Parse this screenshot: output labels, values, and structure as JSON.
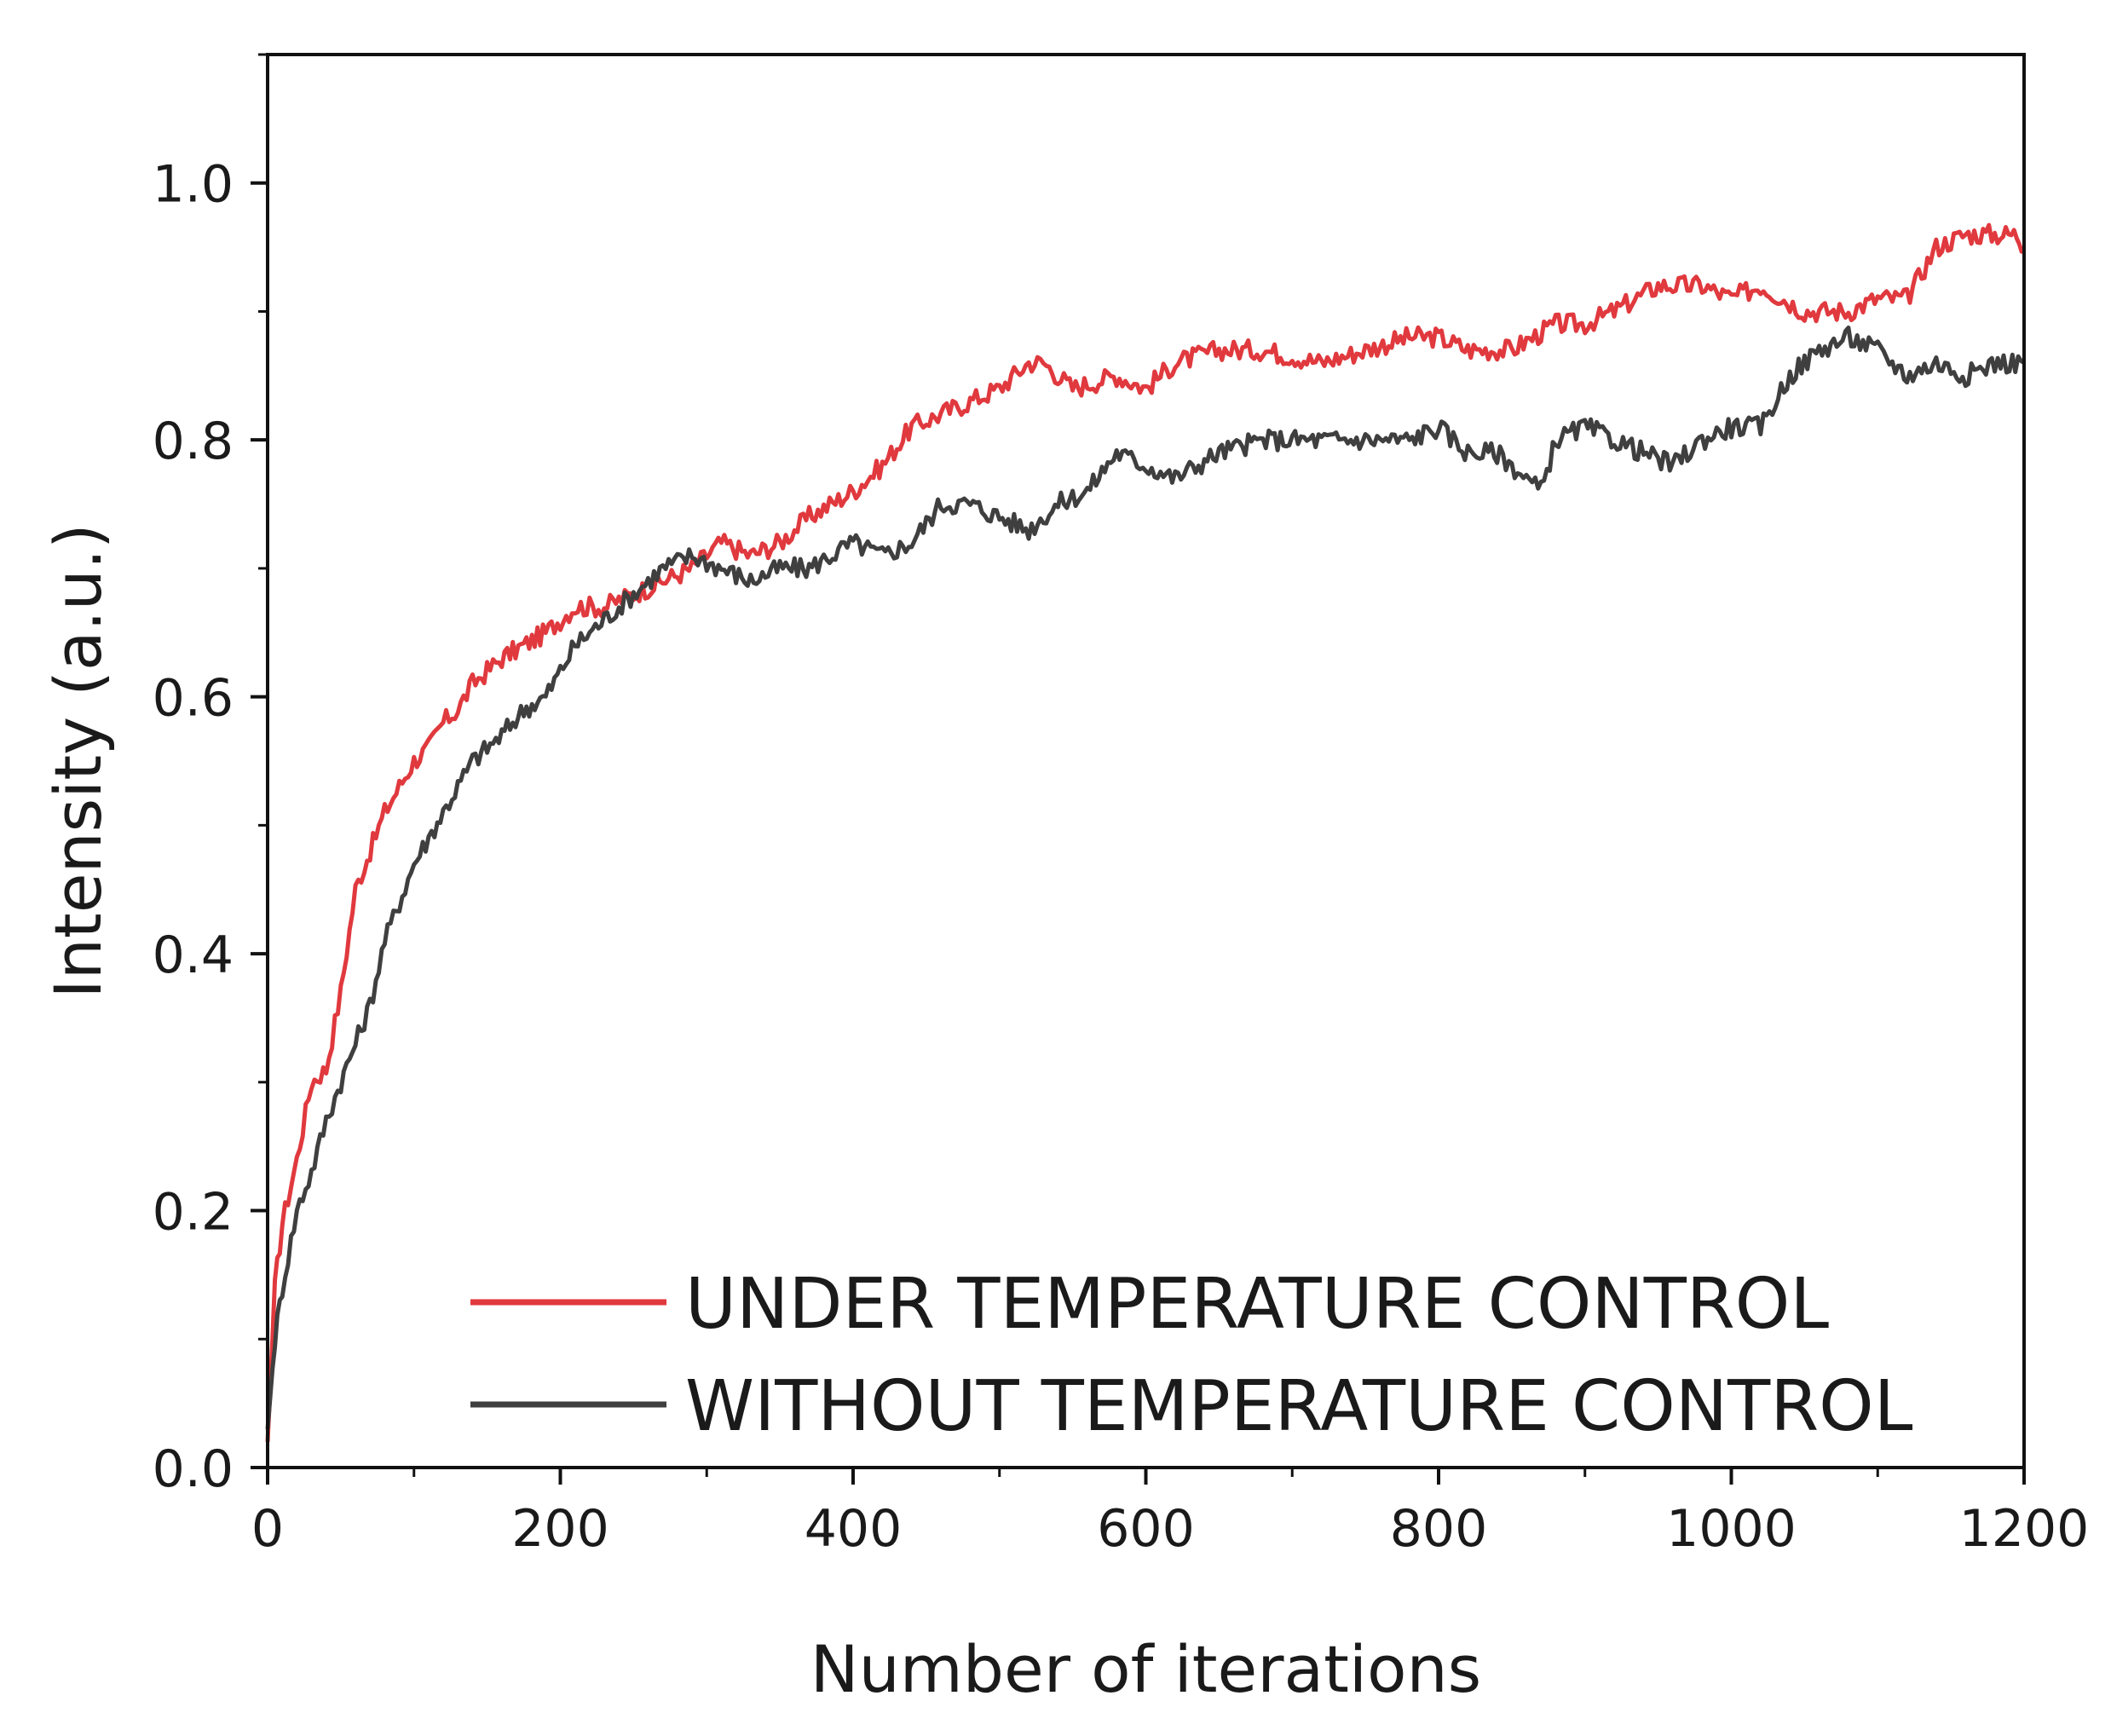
{
  "chart_data": {
    "type": "line",
    "title": "",
    "xlabel": "Number of iterations",
    "ylabel": "Intensity (a.u.)",
    "xlim": [
      0,
      1200
    ],
    "ylim": [
      0,
      1.1
    ],
    "x_ticks": [
      0,
      200,
      400,
      600,
      800,
      1000,
      1200
    ],
    "x_tick_labels": [
      "0",
      "200",
      "400",
      "600",
      "800",
      "1000",
      "1200"
    ],
    "y_ticks": [
      0.0,
      0.2,
      0.4,
      0.6,
      0.8,
      1.0
    ],
    "y_tick_labels": [
      "0.0",
      "0.2",
      "0.4",
      "0.6",
      "0.8",
      "1.0"
    ],
    "grid": false,
    "legend_position": "bottom-right",
    "series": [
      {
        "name": "UNDER TEMPERATURE CONTROL",
        "color": "#e0393e",
        "x": [
          0,
          5,
          10,
          20,
          30,
          40,
          50,
          60,
          70,
          80,
          90,
          100,
          110,
          120,
          130,
          140,
          150,
          160,
          175,
          190,
          200,
          210,
          230,
          250,
          270,
          290,
          310,
          330,
          350,
          370,
          400,
          420,
          440,
          460,
          480,
          500,
          520,
          530,
          550,
          580,
          600,
          620,
          650,
          680,
          720,
          750,
          780,
          800,
          820,
          850,
          880,
          900,
          920,
          950,
          980,
          1000,
          1020,
          1050,
          1080,
          1100,
          1120,
          1140,
          1160,
          1180,
          1195,
          1200
        ],
        "y": [
          0.02,
          0.14,
          0.19,
          0.24,
          0.3,
          0.31,
          0.37,
          0.45,
          0.48,
          0.51,
          0.53,
          0.55,
          0.56,
          0.58,
          0.59,
          0.61,
          0.62,
          0.63,
          0.64,
          0.65,
          0.66,
          0.67,
          0.67,
          0.68,
          0.69,
          0.7,
          0.72,
          0.71,
          0.72,
          0.74,
          0.76,
          0.78,
          0.81,
          0.82,
          0.83,
          0.84,
          0.86,
          0.86,
          0.84,
          0.85,
          0.84,
          0.86,
          0.87,
          0.87,
          0.86,
          0.87,
          0.88,
          0.88,
          0.87,
          0.87,
          0.89,
          0.89,
          0.9,
          0.92,
          0.92,
          0.91,
          0.92,
          0.9,
          0.9,
          0.91,
          0.91,
          0.95,
          0.96,
          0.96,
          0.96,
          0.95
        ]
      },
      {
        "name": "WITHOUT TEMPERATURE CONTROL",
        "color": "#3f3f3f",
        "x": [
          0,
          5,
          10,
          20,
          30,
          40,
          50,
          60,
          70,
          80,
          90,
          100,
          110,
          120,
          130,
          140,
          150,
          160,
          175,
          190,
          200,
          210,
          230,
          250,
          270,
          290,
          310,
          330,
          350,
          370,
          400,
          420,
          440,
          460,
          480,
          500,
          520,
          540,
          560,
          580,
          600,
          620,
          650,
          680,
          700,
          720,
          750,
          780,
          800,
          820,
          840,
          860,
          870,
          880,
          900,
          920,
          940,
          960,
          980,
          1000,
          1020,
          1040,
          1060,
          1080,
          1100,
          1120,
          1140,
          1160,
          1180,
          1200
        ],
        "y": [
          0.03,
          0.1,
          0.14,
          0.2,
          0.23,
          0.27,
          0.3,
          0.33,
          0.36,
          0.41,
          0.44,
          0.47,
          0.49,
          0.51,
          0.53,
          0.55,
          0.56,
          0.57,
          0.59,
          0.6,
          0.62,
          0.64,
          0.66,
          0.68,
          0.7,
          0.71,
          0.7,
          0.69,
          0.7,
          0.7,
          0.72,
          0.71,
          0.72,
          0.75,
          0.75,
          0.74,
          0.73,
          0.75,
          0.76,
          0.79,
          0.78,
          0.77,
          0.79,
          0.8,
          0.8,
          0.8,
          0.8,
          0.8,
          0.81,
          0.79,
          0.79,
          0.77,
          0.76,
          0.8,
          0.81,
          0.8,
          0.79,
          0.78,
          0.8,
          0.81,
          0.81,
          0.85,
          0.87,
          0.88,
          0.87,
          0.85,
          0.86,
          0.85,
          0.86,
          0.86
        ]
      }
    ]
  }
}
